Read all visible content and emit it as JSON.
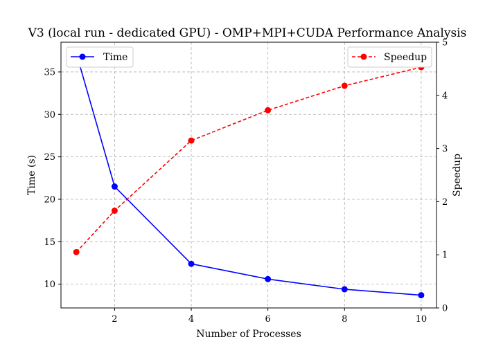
{
  "chart_data": {
    "type": "line",
    "title": "V3 (local run - dedicated GPU) - OMP+MPI+CUDA Performance Analysis",
    "xlabel": "Number of Processes",
    "ylabel_left": "Time (s)",
    "ylabel_right": "Speedup",
    "x": [
      1,
      2,
      4,
      6,
      8,
      10
    ],
    "xlim": [
      0.6,
      10.4
    ],
    "xticks": [
      2,
      4,
      6,
      8,
      10
    ],
    "ylim_left": [
      7.2,
      38.5
    ],
    "yticks_left": [
      10,
      15,
      20,
      25,
      30,
      35
    ],
    "ylim_right": [
      0,
      5
    ],
    "yticks_right": [
      0,
      1,
      2,
      3,
      4,
      5
    ],
    "grid": true,
    "series": [
      {
        "name": "Time",
        "axis": "left",
        "values": [
          37.2,
          21.5,
          12.4,
          10.6,
          9.4,
          8.7
        ],
        "color": "#0000ff",
        "style": "solid",
        "marker": "circle"
      },
      {
        "name": "Speedup",
        "axis": "right",
        "values": [
          1.05,
          1.83,
          3.15,
          3.72,
          4.18,
          4.53
        ],
        "color": "#ff0000",
        "style": "dashed",
        "marker": "circle"
      }
    ],
    "legends": [
      {
        "series": "Time",
        "placement": "top-left"
      },
      {
        "series": "Speedup",
        "placement": "top-right"
      }
    ]
  }
}
